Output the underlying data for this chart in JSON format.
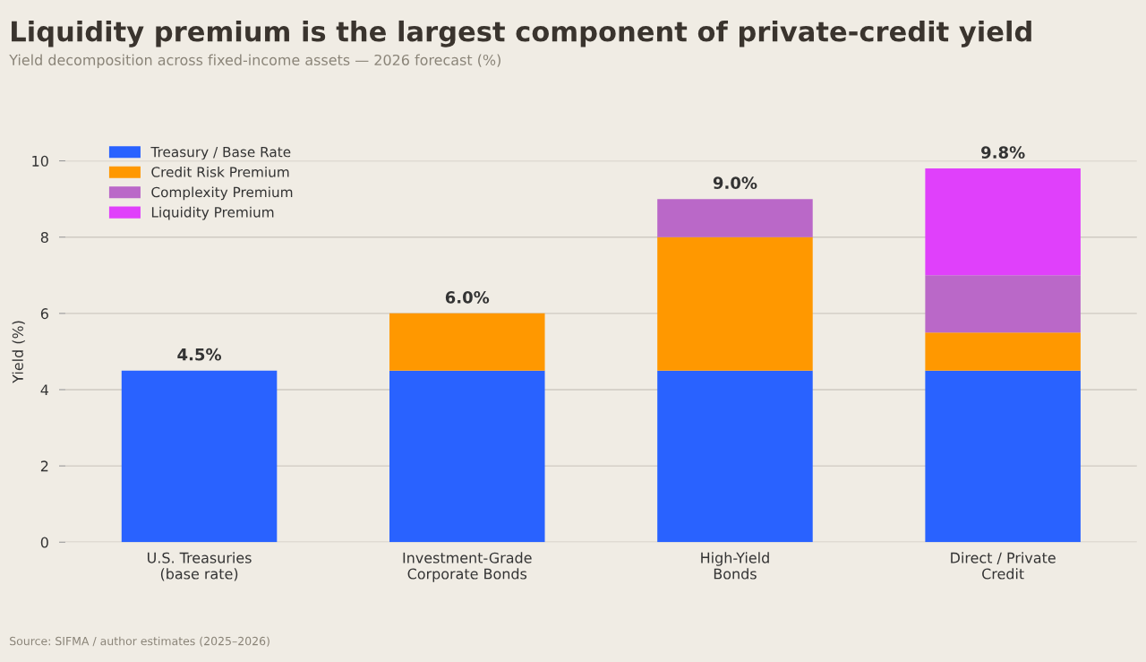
{
  "chart_data": {
    "type": "bar",
    "stacked": true,
    "title": "Liquidity premium is the largest component of private-credit yield",
    "subtitle": "Yield decomposition across fixed-income assets — 2026 forecast (%)",
    "ylabel": "Yield (%)",
    "categories": [
      "U.S. Treasuries\n(base rate)",
      "Investment-Grade\nCorporate Bonds",
      "High-Yield\nBonds",
      "Direct / Private\nCredit"
    ],
    "series": [
      {
        "name": "Treasury / Base Rate",
        "color": "#2962ff",
        "values": [
          4.5,
          4.5,
          4.5,
          4.5
        ]
      },
      {
        "name": "Credit Risk Premium",
        "color": "#ff9800",
        "values": [
          null,
          1.5,
          3.5,
          1.0
        ]
      },
      {
        "name": "Complexity Premium",
        "color": "#ba68c8",
        "values": [
          null,
          null,
          1.0,
          1.5
        ]
      },
      {
        "name": "Liquidity Premium",
        "color": "#e040fb",
        "values": [
          null,
          null,
          null,
          2.8
        ]
      }
    ],
    "totals": [
      "4.5%",
      "6.0%",
      "9.0%",
      "9.8%"
    ],
    "ylim": [
      0,
      10
    ],
    "yticks": [
      0,
      2,
      4,
      6,
      8,
      10
    ],
    "grid": "y",
    "legend": "top left",
    "annotations": [
      "Source: SIFMA / author estimates (2025–2026)"
    ]
  }
}
